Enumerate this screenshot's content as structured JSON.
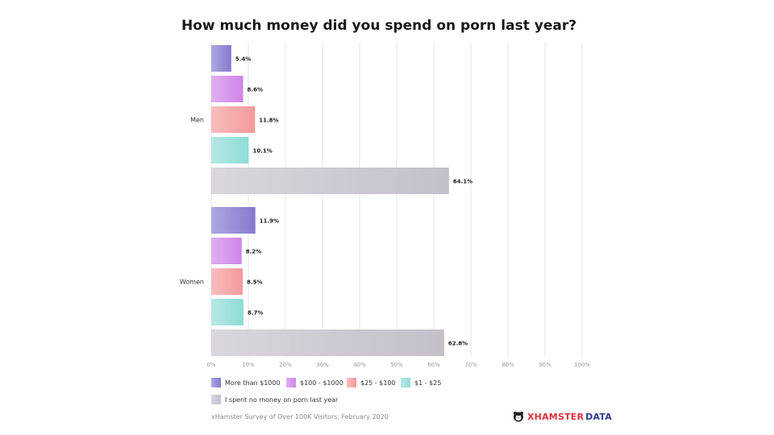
{
  "chart_data": {
    "type": "bar",
    "orientation": "horizontal",
    "title": "How much money did you spend on porn last year?",
    "groups": [
      "Men",
      "Women"
    ],
    "series": [
      {
        "name": "More than $1000",
        "values": [
          5.4,
          11.9
        ],
        "labels": [
          "5.4%",
          "11.9%"
        ],
        "color": "#8479cf"
      },
      {
        "name": "$100 - $1000",
        "values": [
          8.6,
          8.2
        ],
        "labels": [
          "8.6%",
          "8.2%"
        ],
        "color": "#cf84e8"
      },
      {
        "name": "$25 - $100",
        "values": [
          11.8,
          8.5
        ],
        "labels": [
          "11.8%",
          "8.5%"
        ],
        "color": "#f59a9a"
      },
      {
        "name": "$1 - $25",
        "values": [
          10.1,
          8.7
        ],
        "labels": [
          "10.1%",
          "8.7%"
        ],
        "color": "#8fdcd6"
      },
      {
        "name": "I spent no money on porn last year",
        "values": [
          64.1,
          62.8
        ],
        "labels": [
          "64.1%",
          "62.8%"
        ],
        "color": "#c4c0ca"
      }
    ],
    "xlim": [
      0,
      100
    ],
    "xticks": [
      "0%",
      "10%",
      "20%",
      "30%",
      "40%",
      "50%",
      "60%",
      "70%",
      "80%",
      "90%",
      "100%"
    ],
    "grid": true,
    "legend": "bottom"
  },
  "footnote": "xHamster Survey of Over 100K Visitors, February 2020",
  "brand": {
    "part1": "XHAMSTER",
    "part2": "DATA"
  }
}
